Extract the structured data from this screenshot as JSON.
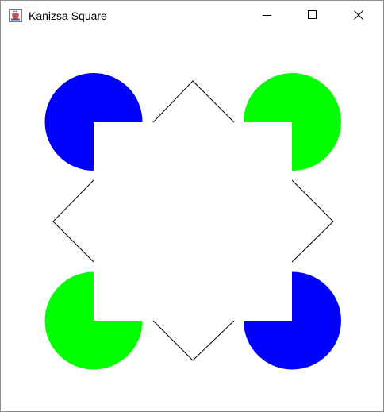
{
  "window": {
    "title": "Kanizsa Square",
    "title_icon": "java-coffee-icon",
    "controls": {
      "minimize_icon": "minimize-icon",
      "maximize_icon": "maximize-icon",
      "close_icon": "close-icon"
    }
  },
  "figure": {
    "colors": {
      "blue": "#0000ff",
      "green": "#00ff00",
      "line": "#000000",
      "background": "#ffffff"
    },
    "pacmen": [
      {
        "name": "top-left",
        "color": "blue"
      },
      {
        "name": "top-right",
        "color": "green"
      },
      {
        "name": "bottom-left",
        "color": "green"
      },
      {
        "name": "bottom-right",
        "color": "blue"
      }
    ]
  }
}
